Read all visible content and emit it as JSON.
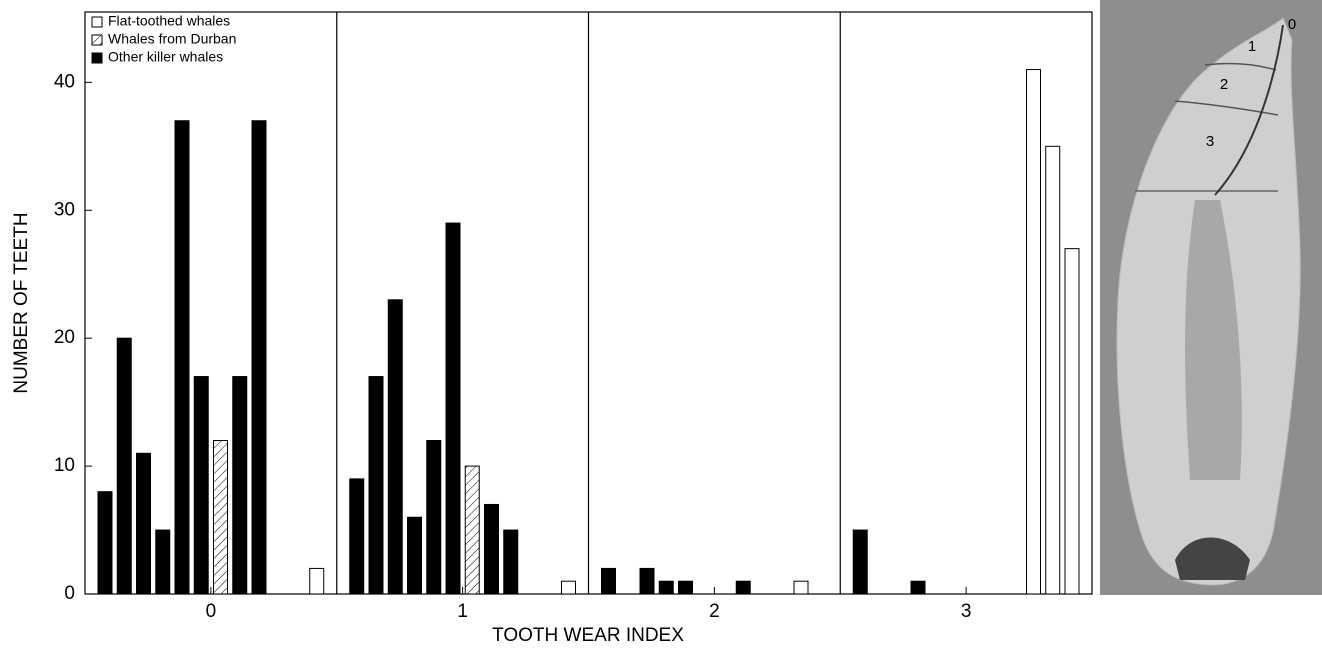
{
  "chart_data": {
    "type": "bar",
    "x_label": "TOOTH WEAR INDEX",
    "y_label": "NUMBER OF TEETH",
    "categories": [
      "0",
      "1",
      "2",
      "3"
    ],
    "series": [
      {
        "name": "Flat-toothed whales",
        "color": "#ffffff",
        "pattern": "solid",
        "values": [
          [
            null,
            null,
            null,
            null,
            null,
            null,
            null,
            null,
            null,
            null,
            null,
            2
          ],
          [
            null,
            null,
            null,
            null,
            null,
            null,
            null,
            null,
            null,
            null,
            null,
            1
          ],
          [
            null,
            null,
            null,
            null,
            null,
            null,
            null,
            null,
            null,
            null,
            1,
            null
          ],
          [
            null,
            null,
            null,
            null,
            null,
            null,
            null,
            null,
            null,
            41,
            35,
            27
          ]
        ]
      },
      {
        "name": "Whales from Durban",
        "color": "#ffffff",
        "pattern": "hatched",
        "values": [
          [
            null,
            null,
            null,
            null,
            null,
            null,
            12,
            null,
            null,
            null,
            null,
            null
          ],
          [
            null,
            null,
            null,
            null,
            null,
            null,
            10,
            null,
            null,
            null,
            null,
            null
          ],
          [
            null,
            null,
            null,
            null,
            null,
            null,
            null,
            null,
            null,
            null,
            null,
            null
          ],
          [
            null,
            null,
            null,
            null,
            null,
            null,
            null,
            null,
            null,
            null,
            null,
            null
          ]
        ]
      },
      {
        "name": "Other killer whales",
        "color": "#000000",
        "pattern": "solid",
        "values": [
          [
            8,
            20,
            11,
            5,
            37,
            17,
            null,
            17,
            37,
            null,
            null,
            null
          ],
          [
            9,
            17,
            23,
            6,
            12,
            29,
            null,
            7,
            5,
            null,
            null,
            null
          ],
          [
            2,
            null,
            2,
            1,
            1,
            null,
            null,
            1,
            null,
            null,
            null,
            null
          ],
          [
            5,
            null,
            null,
            1,
            null,
            null,
            null,
            null,
            null,
            null,
            null,
            null
          ]
        ]
      }
    ],
    "ylim": [
      0,
      45.5
    ],
    "yticks": [
      0,
      10,
      20,
      30,
      40
    ],
    "legend": "upper left"
  },
  "tooth_image": {
    "labels": [
      "0",
      "1",
      "2",
      "3"
    ]
  }
}
